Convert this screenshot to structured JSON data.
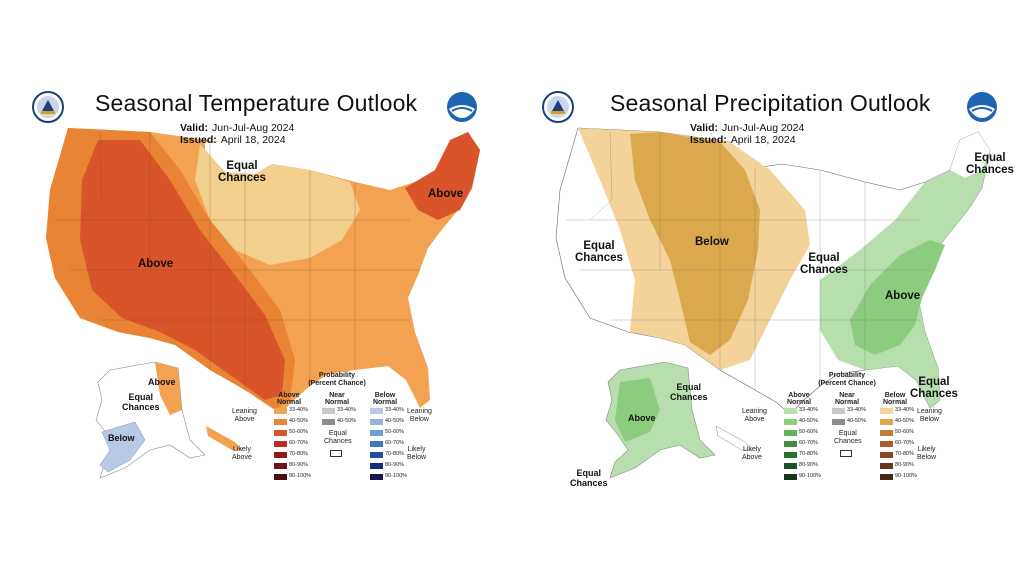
{
  "colors": {
    "above_33": "#f2a250",
    "above_40": "#e98434",
    "above_50": "#d9542a",
    "above_60": "#b92d22",
    "above_70": "#8b1c1c",
    "above_80": "#6b1414",
    "above_90": "#4a0c0c",
    "below_t_33": "#b7c9e5",
    "below_t_40": "#95b4dc",
    "below_t_50": "#6c9fd2",
    "below_t_60": "#3d78c0",
    "below_t_70": "#1f4f9c",
    "below_t_80": "#162f7a",
    "below_t_90": "#1a1450",
    "wet_33": "#b7dfae",
    "wet_40": "#8ccc7e",
    "wet_50": "#60b356",
    "wet_60": "#3d8f3d",
    "wet_70": "#2a6e2e",
    "wet_80": "#1c5222",
    "wet_90": "#103815",
    "dry_33": "#f3d39a",
    "dry_40": "#dca84e",
    "dry_50": "#c27f34",
    "dry_60": "#a85f2a",
    "dry_70": "#8a4624",
    "dry_80": "#6b3420",
    "dry_90": "#4a2418",
    "near_33": "#c8c8c8",
    "near_40": "#8d8d8d"
  },
  "temperature": {
    "title": "Seasonal Temperature Outlook",
    "valid_label": "Valid:",
    "valid_value": "Jun-Jul-Aug 2024",
    "issued_label": "Issued:",
    "issued_value": "April 18, 2024",
    "regions": {
      "west": "Above",
      "northeast": "Above",
      "upper_midwest": "Equal\nChances",
      "alaska_north": "Above",
      "alaska_west": "Equal\nChances",
      "alaska_south": "Below"
    },
    "legend": {
      "title": "Probability\n(Percent Chance)",
      "col_above": "Above\nNormal",
      "col_near": "Near\nNormal",
      "col_below": "Below\nNormal",
      "leaning_above": "Leaning\nAbove",
      "likely_above": "Likely\nAbove",
      "leaning_below": "Leaning\nBelow",
      "likely_below": "Likely\nBelow",
      "equal_chances": "Equal\nChances",
      "above_ranges": [
        "33-40%",
        "40-50%",
        "50-60%",
        "60-70%",
        "70-80%",
        "80-90%",
        "90-100%"
      ],
      "near_ranges": [
        "33-40%",
        "40-50%"
      ],
      "below_ranges": [
        "33-40%",
        "40-50%",
        "50-60%",
        "60-70%",
        "70-80%",
        "80-90%",
        "90-100%"
      ]
    }
  },
  "precipitation": {
    "title": "Seasonal Precipitation Outlook",
    "valid_label": "Valid:",
    "valid_value": "Jun-Jul-Aug 2024",
    "issued_label": "Issued:",
    "issued_value": "April 18, 2024",
    "regions": {
      "west": "Equal\nChances",
      "central": "Below",
      "midwest": "Equal\nChances",
      "east": "Above",
      "northeast": "Equal\nChances",
      "southeast_coast": "Equal\nChances",
      "alaska_north": "Equal\nChances",
      "alaska_south": "Above",
      "alaska_sw": "Equal\nChances"
    },
    "legend": {
      "title": "Probability\n(Percent Chance)",
      "col_above": "Above\nNormal",
      "col_near": "Near\nNormal",
      "col_below": "Below\nNormal",
      "leaning_above": "Leaning\nAbove",
      "likely_above": "Likely\nAbove",
      "leaning_below": "Leaning\nBelow",
      "likely_below": "Likely\nBelow",
      "equal_chances": "Equal\nChances",
      "above_ranges": [
        "33-40%",
        "40-50%",
        "50-60%",
        "60-70%",
        "70-80%",
        "80-90%",
        "90-100%"
      ],
      "near_ranges": [
        "33-40%",
        "40-50%"
      ],
      "below_ranges": [
        "33-40%",
        "40-50%",
        "50-60%",
        "60-70%",
        "70-80%",
        "80-90%",
        "90-100%"
      ]
    }
  }
}
